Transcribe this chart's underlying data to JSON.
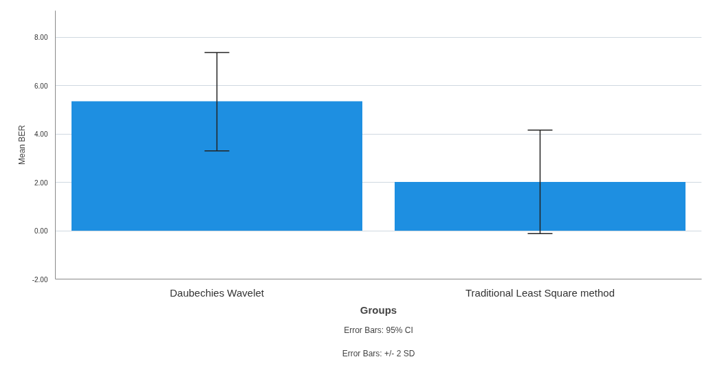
{
  "chart_data": {
    "type": "bar",
    "xlabel": "Groups",
    "ylabel": "Mean BER",
    "categories": [
      "Daubechies Wavelet",
      "Traditional Least Square method"
    ],
    "values": [
      5.35,
      2.02
    ],
    "errors": [
      [
        3.3,
        7.37
      ],
      [
        -0.12,
        4.16
      ]
    ],
    "color": "#1e8fe1",
    "ylim": [
      -2,
      9.1
    ],
    "yticks": [
      {
        "value": -2,
        "label": "-2.00"
      },
      {
        "value": 0,
        "label": "0.00"
      },
      {
        "value": 2,
        "label": "2.00"
      },
      {
        "value": 4,
        "label": "4.00"
      },
      {
        "value": 6,
        "label": "6.00"
      },
      {
        "value": 8,
        "label": "8.00"
      }
    ],
    "grid": "y",
    "annotations": [
      "Error Bars: 95% CI",
      "Error Bars: +/- 2 SD"
    ]
  }
}
